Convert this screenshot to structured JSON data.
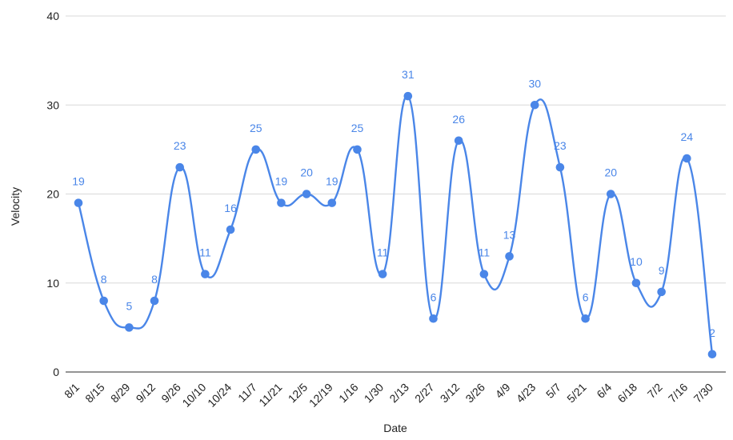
{
  "chart_data": {
    "type": "line",
    "title": "",
    "xlabel": "Date",
    "ylabel": "Velocity",
    "ylim": [
      0,
      40
    ],
    "yticks": [
      0,
      10,
      20,
      30,
      40
    ],
    "grid": true,
    "legend": "none",
    "smooth": true,
    "categories": [
      "8/1",
      "8/15",
      "8/29",
      "9/12",
      "9/26",
      "10/10",
      "10/24",
      "11/7",
      "11/21",
      "12/5",
      "12/19",
      "1/16",
      "1/30",
      "2/13",
      "2/27",
      "3/12",
      "3/26",
      "4/9",
      "4/23",
      "5/7",
      "5/21",
      "6/4",
      "6/18",
      "7/2",
      "7/16",
      "7/30"
    ],
    "series": [
      {
        "values": [
          19,
          8,
          5,
          8,
          23,
          11,
          16,
          25,
          19,
          20,
          19,
          25,
          11,
          31,
          6,
          26,
          11,
          13,
          30,
          23,
          6,
          20,
          10,
          9,
          24,
          2
        ],
        "color": "#4a86e8"
      }
    ]
  }
}
